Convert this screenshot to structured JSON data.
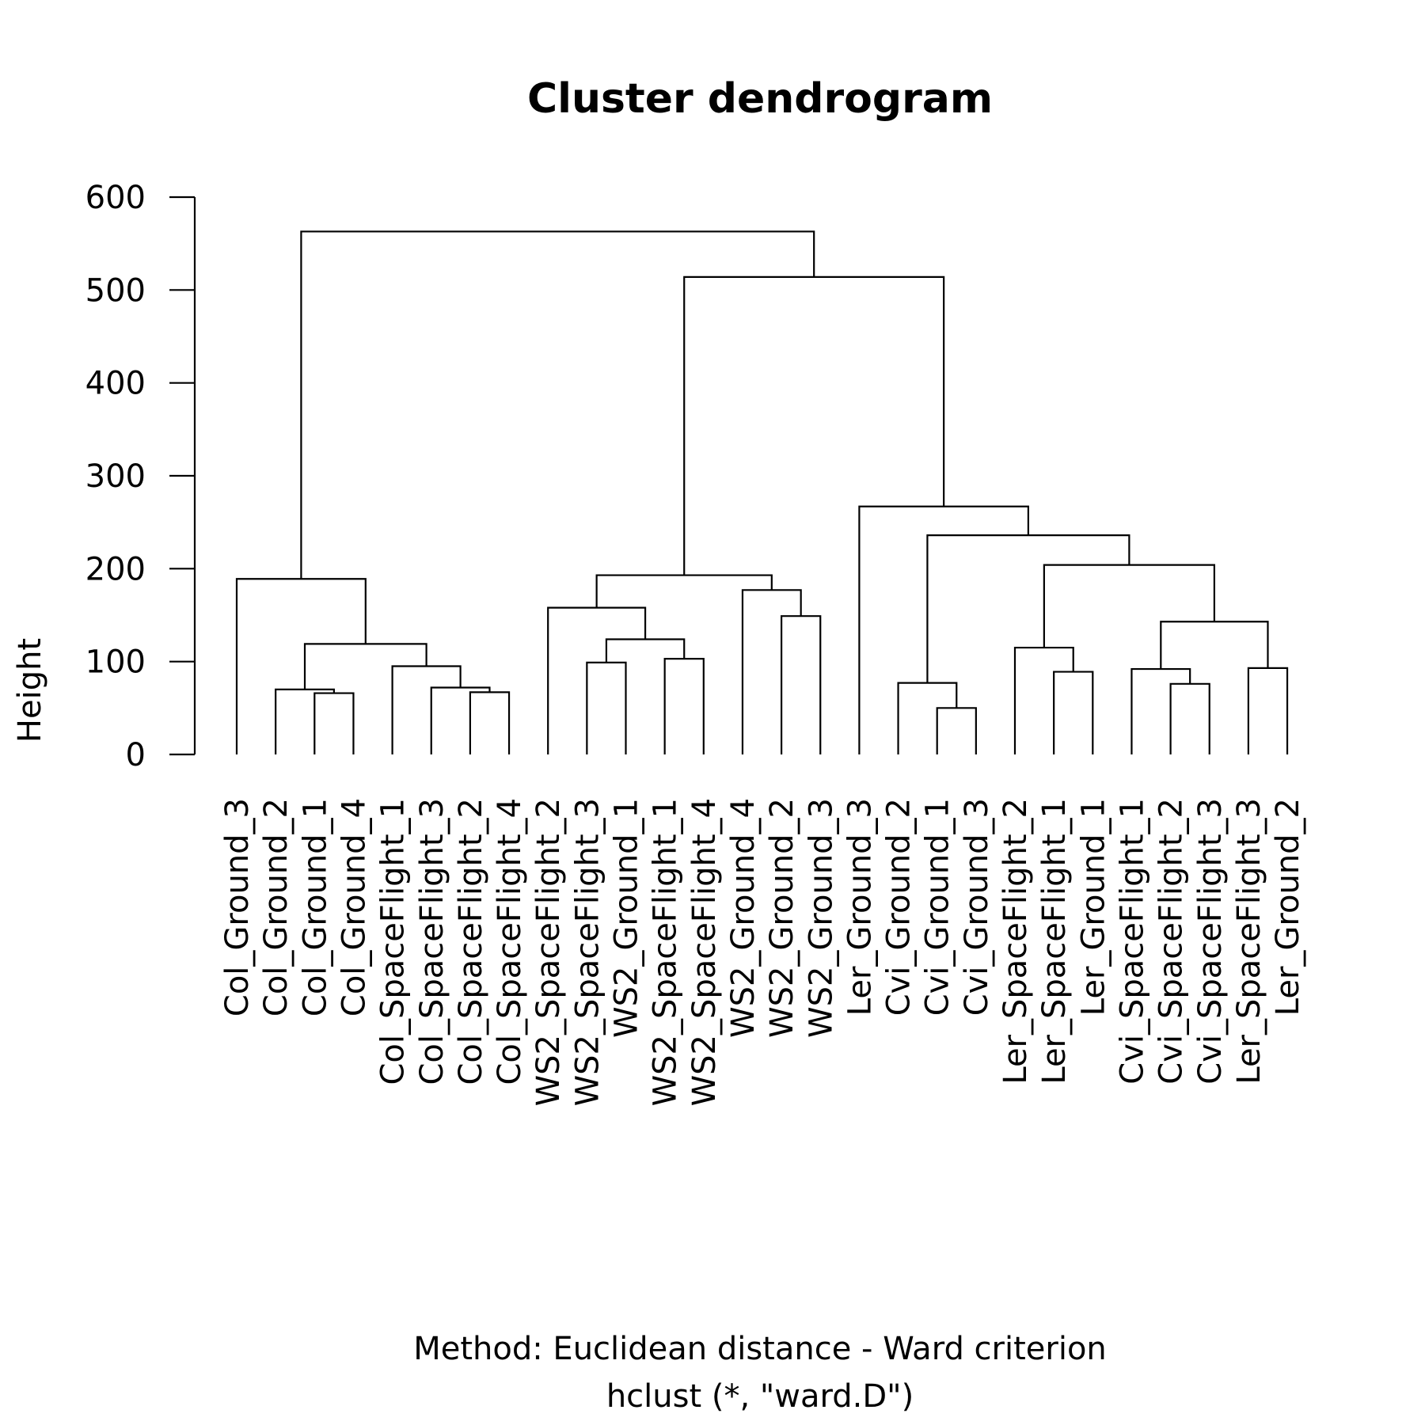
{
  "chart_data": {
    "type": "dendrogram",
    "title": "Cluster dendrogram",
    "ylabel": "Height",
    "xlabel": "Method: Euclidean distance - Ward criterion",
    "sublabel": "hclust (*, \"ward.D\")",
    "ylim": [
      0,
      600
    ],
    "yticks": [
      "0",
      "100",
      "200",
      "300",
      "400",
      "500",
      "600"
    ],
    "leaves": [
      "Col_Ground_3",
      "Col_Ground_2",
      "Col_Ground_1",
      "Col_Ground_4",
      "Col_SpaceFlight_1",
      "Col_SpaceFlight_3",
      "Col_SpaceFlight_2",
      "Col_SpaceFlight_4",
      "WS2_SpaceFlight_2",
      "WS2_SpaceFlight_3",
      "WS2_Ground_1",
      "WS2_SpaceFlight_1",
      "WS2_SpaceFlight_4",
      "WS2_Ground_4",
      "WS2_Ground_2",
      "WS2_Ground_3",
      "Ler_Ground_3",
      "Cvi_Ground_2",
      "Cvi_Ground_1",
      "Cvi_Ground_3",
      "Ler_SpaceFlight_2",
      "Ler_SpaceFlight_1",
      "Ler_Ground_1",
      "Cvi_SpaceFlight_1",
      "Cvi_SpaceFlight_2",
      "Cvi_SpaceFlight_3",
      "Ler_SpaceFlight_3",
      "Ler_Ground_2"
    ],
    "merges": [
      {
        "left": 2,
        "right": 3,
        "height": 66
      },
      {
        "left": 1,
        "right": "m1",
        "height": 70
      },
      {
        "left": 6,
        "right": 7,
        "height": 67
      },
      {
        "left": 5,
        "right": "m3",
        "height": 72
      },
      {
        "left": 4,
        "right": "m4",
        "height": 95
      },
      {
        "left": "m2",
        "right": "m5",
        "height": 119
      },
      {
        "left": 0,
        "right": "m6",
        "height": 189
      },
      {
        "left": 9,
        "right": 10,
        "height": 99
      },
      {
        "left": 11,
        "right": 12,
        "height": 103
      },
      {
        "left": "m8",
        "right": "m9",
        "height": 124
      },
      {
        "left": 8,
        "right": "m10",
        "height": 158
      },
      {
        "left": 14,
        "right": 15,
        "height": 149
      },
      {
        "left": 13,
        "right": "m12",
        "height": 177
      },
      {
        "left": "m11",
        "right": "m13",
        "height": 193
      },
      {
        "left": 18,
        "right": 19,
        "height": 50
      },
      {
        "left": 17,
        "right": "m15",
        "height": 77
      },
      {
        "left": 21,
        "right": 22,
        "height": 89
      },
      {
        "left": 20,
        "right": "m17",
        "height": 115
      },
      {
        "left": 24,
        "right": 25,
        "height": 76
      },
      {
        "left": 23,
        "right": "m19",
        "height": 92
      },
      {
        "left": 26,
        "right": 27,
        "height": 93
      },
      {
        "left": "m20",
        "right": "m21",
        "height": 143
      },
      {
        "left": "m18",
        "right": "m22",
        "height": 204
      },
      {
        "left": "m16",
        "right": "m23",
        "height": 236
      },
      {
        "left": 16,
        "right": "m24",
        "height": 267
      },
      {
        "left": "m14",
        "right": "m25",
        "height": 514
      },
      {
        "left": "m7",
        "right": "m26",
        "height": 563
      }
    ]
  }
}
